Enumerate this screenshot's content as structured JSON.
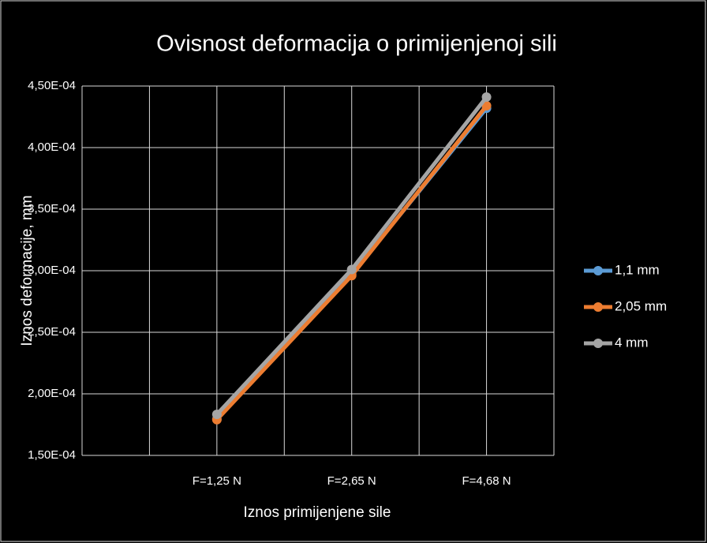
{
  "chart_data": {
    "type": "line",
    "title": "Ovisnost deformacija o primijenjenoj sili",
    "x_label": "Iznos primijenjene sile",
    "y_label": "Iznos deformacije, mm",
    "categories": [
      "F=1,25 N",
      "F=2,65 N",
      "F=4,68 N"
    ],
    "series": [
      {
        "name": "1,1 mm",
        "color": "#5b9bd5",
        "values": [
          0.0001795,
          0.000297,
          0.000432
        ]
      },
      {
        "name": "2,05 mm",
        "color": "#ed7d31",
        "values": [
          0.000179,
          0.000296,
          0.000434
        ]
      },
      {
        "name": "4 mm",
        "color": "#a5a5a5",
        "values": [
          0.0001833,
          0.000301,
          0.000441
        ]
      }
    ],
    "ylim": [
      0.00015,
      0.00045
    ],
    "yticks": [
      {
        "value": 0.00015,
        "label": "1,50E-04"
      },
      {
        "value": 0.0002,
        "label": "2,00E-04"
      },
      {
        "value": 0.00025,
        "label": "2,50E-04"
      },
      {
        "value": 0.0003,
        "label": "3,00E-04"
      },
      {
        "value": 0.00035,
        "label": "3,50E-04"
      },
      {
        "value": 0.0004,
        "label": "4,00E-04"
      },
      {
        "value": 0.00045,
        "label": "4,50E-04"
      }
    ],
    "grid": true,
    "legend": "right"
  }
}
